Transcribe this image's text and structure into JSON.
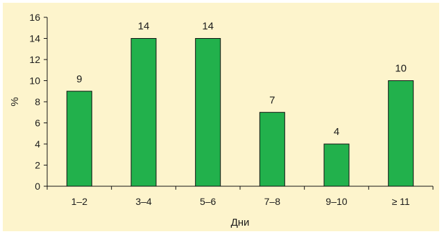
{
  "chart_data": {
    "type": "bar",
    "categories": [
      "1–2",
      "3–4",
      "5–6",
      "7–8",
      "9–10",
      "≥ 11"
    ],
    "values": [
      9,
      14,
      14,
      7,
      4,
      10
    ],
    "data_labels": [
      "9",
      "14",
      "14",
      "7",
      "4",
      "10"
    ],
    "xlabel": "Дни",
    "ylabel": "%",
    "ylim": [
      0,
      16
    ],
    "yticks": [
      0,
      2,
      4,
      6,
      8,
      10,
      12,
      14,
      16
    ],
    "grid": false,
    "legend": "none",
    "colors": {
      "bar": "#22b14c",
      "bar_stroke": "#111111",
      "background": "#fdf4cc",
      "axis": "#111111"
    }
  }
}
